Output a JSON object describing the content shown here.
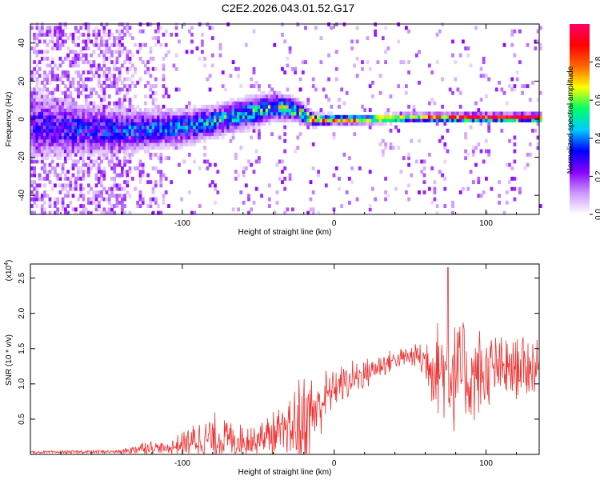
{
  "title": "C2E2.2026.043.01.52.G17",
  "chart_data": [
    {
      "type": "heatmap",
      "name": "spectrogram",
      "xlabel": "Height of straight line (km)",
      "ylabel": "Frequency (Hz)",
      "xlim": [
        -200,
        135
      ],
      "ylim": [
        -50,
        50
      ],
      "x_ticks": [
        -100,
        0,
        100
      ],
      "y_ticks": [
        -40,
        -20,
        0,
        20,
        40
      ],
      "colorbar": {
        "label": "Normalized spectral amplitude",
        "range": [
          0,
          1
        ],
        "ticks": [
          "0.0",
          "0.2",
          "0.4",
          "0.6",
          "0.8"
        ],
        "tick_values": [
          0.0,
          0.2,
          0.4,
          0.6,
          0.8
        ],
        "colors": [
          "#ffffff",
          "#cc99ff",
          "#8800ff",
          "#0000ff",
          "#00ccff",
          "#00ff66",
          "#ffff00",
          "#ff6600",
          "#ff0000",
          "#ff0066"
        ]
      },
      "ridge": [
        {
          "x": -200,
          "center": -4,
          "spread": 16,
          "amp": 0.25
        },
        {
          "x": -170,
          "center": -6,
          "spread": 12,
          "amp": 0.3
        },
        {
          "x": -140,
          "center": -7,
          "spread": 10,
          "amp": 0.32
        },
        {
          "x": -120,
          "center": -6,
          "spread": 9,
          "amp": 0.35
        },
        {
          "x": -100,
          "center": -5,
          "spread": 8,
          "amp": 0.38
        },
        {
          "x": -80,
          "center": -2,
          "spread": 7,
          "amp": 0.42
        },
        {
          "x": -60,
          "center": 2,
          "spread": 7,
          "amp": 0.45
        },
        {
          "x": -40,
          "center": 6,
          "spread": 6,
          "amp": 0.5
        },
        {
          "x": -25,
          "center": 4,
          "spread": 5,
          "amp": 0.55
        },
        {
          "x": -15,
          "center": -1,
          "spread": 3,
          "amp": 0.62
        },
        {
          "x": 0,
          "center": -1,
          "spread": 2,
          "amp": 0.75
        },
        {
          "x": 20,
          "center": -1,
          "spread": 2,
          "amp": 0.6
        },
        {
          "x": 50,
          "center": 0,
          "spread": 2,
          "amp": 0.55
        },
        {
          "x": 80,
          "center": 0,
          "spread": 2,
          "amp": 0.8
        },
        {
          "x": 110,
          "center": 0,
          "spread": 2,
          "amp": 0.85
        },
        {
          "x": 135,
          "center": 0,
          "spread": 2,
          "amp": 0.9
        }
      ]
    },
    {
      "type": "line",
      "name": "snr",
      "xlabel": "Height of straight line (km)",
      "ylabel": "SNR (10 * v/v)",
      "y_multiplier_label": "(x10",
      "y_multiplier_exp": "4",
      "y_multiplier_close": ")",
      "xlim": [
        -200,
        135
      ],
      "ylim": [
        0,
        2.7
      ],
      "x_ticks": [
        -100,
        0,
        100
      ],
      "y_ticks": [
        0.5,
        1.0,
        1.5,
        2.0,
        2.5
      ],
      "y_tick_labels": [
        "0.5",
        "1.0",
        "1.5",
        "2.0",
        "2.5"
      ],
      "color": "#ee3333",
      "envelope": [
        {
          "x": -200,
          "base": 0.03,
          "var": 0.02
        },
        {
          "x": -140,
          "base": 0.04,
          "var": 0.03
        },
        {
          "x": -125,
          "base": 0.1,
          "var": 0.12
        },
        {
          "x": -110,
          "base": 0.08,
          "var": 0.08
        },
        {
          "x": -95,
          "base": 0.18,
          "var": 0.25
        },
        {
          "x": -80,
          "base": 0.22,
          "var": 0.4
        },
        {
          "x": -60,
          "base": 0.2,
          "var": 0.25
        },
        {
          "x": -45,
          "base": 0.25,
          "var": 0.3
        },
        {
          "x": -30,
          "base": 0.3,
          "var": 0.45
        },
        {
          "x": -20,
          "base": 0.45,
          "var": 0.9
        },
        {
          "x": -10,
          "base": 0.7,
          "var": 0.5
        },
        {
          "x": 0,
          "base": 0.95,
          "var": 0.3
        },
        {
          "x": 20,
          "base": 1.15,
          "var": 0.25
        },
        {
          "x": 40,
          "base": 1.35,
          "var": 0.15
        },
        {
          "x": 55,
          "base": 1.4,
          "var": 0.2
        },
        {
          "x": 65,
          "base": 1.25,
          "var": 0.6
        },
        {
          "x": 75,
          "base": 1.15,
          "var": 0.9
        },
        {
          "x": 90,
          "base": 1.1,
          "var": 0.8
        },
        {
          "x": 110,
          "base": 1.2,
          "var": 0.5
        },
        {
          "x": 135,
          "base": 1.25,
          "var": 0.45
        }
      ],
      "peak": {
        "x": 75,
        "y": 2.65
      }
    }
  ]
}
